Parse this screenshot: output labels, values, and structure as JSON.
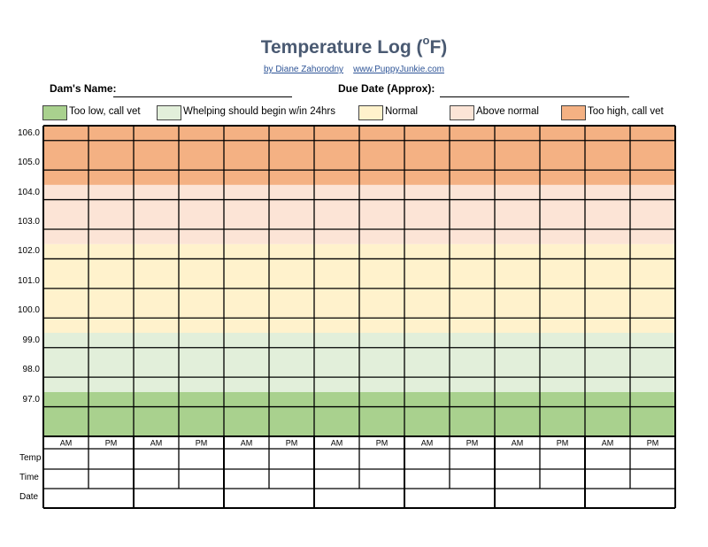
{
  "header": {
    "title_main": "Temperature Log (",
    "title_unit_sup": "o",
    "title_unit": "F)",
    "byline_author": "by Diane Zahorodny",
    "byline_site": "www.PuppyJunkie.com"
  },
  "fields": {
    "dam_name_label": "Dam's Name:",
    "due_date_label": "Due Date (Approx):"
  },
  "legend": [
    {
      "label": "Too low, call vet",
      "color": "#a9d18e"
    },
    {
      "label": "Whelping should begin w/in 24hrs",
      "color": "#e2efda"
    },
    {
      "label": "Normal",
      "color": "#fff2cc"
    },
    {
      "label": "Above normal",
      "color": "#fce4d6"
    },
    {
      "label": "Too high, call vet",
      "color": "#f4b183"
    }
  ],
  "chart": {
    "y_labels": [
      "106.0",
      "105.0",
      "104.0",
      "103.0",
      "102.0",
      "101.0",
      "100.0",
      "99.0",
      "98.0",
      "97.0"
    ],
    "bands": [
      {
        "from": 96.0,
        "to": 97.5,
        "color": "#a9d18e"
      },
      {
        "from": 97.5,
        "to": 99.5,
        "color": "#e2efda"
      },
      {
        "from": 99.5,
        "to": 102.5,
        "color": "#fff2cc"
      },
      {
        "from": 102.5,
        "to": 104.5,
        "color": "#fce4d6"
      },
      {
        "from": 104.5,
        "to": 106.5,
        "color": "#f4b183"
      }
    ],
    "y_min": 96.0,
    "y_max": 106.5
  },
  "table": {
    "am_label": "AM",
    "pm_label": "PM",
    "row_labels": [
      "Temp",
      "Time",
      "Date"
    ],
    "days": 7
  }
}
